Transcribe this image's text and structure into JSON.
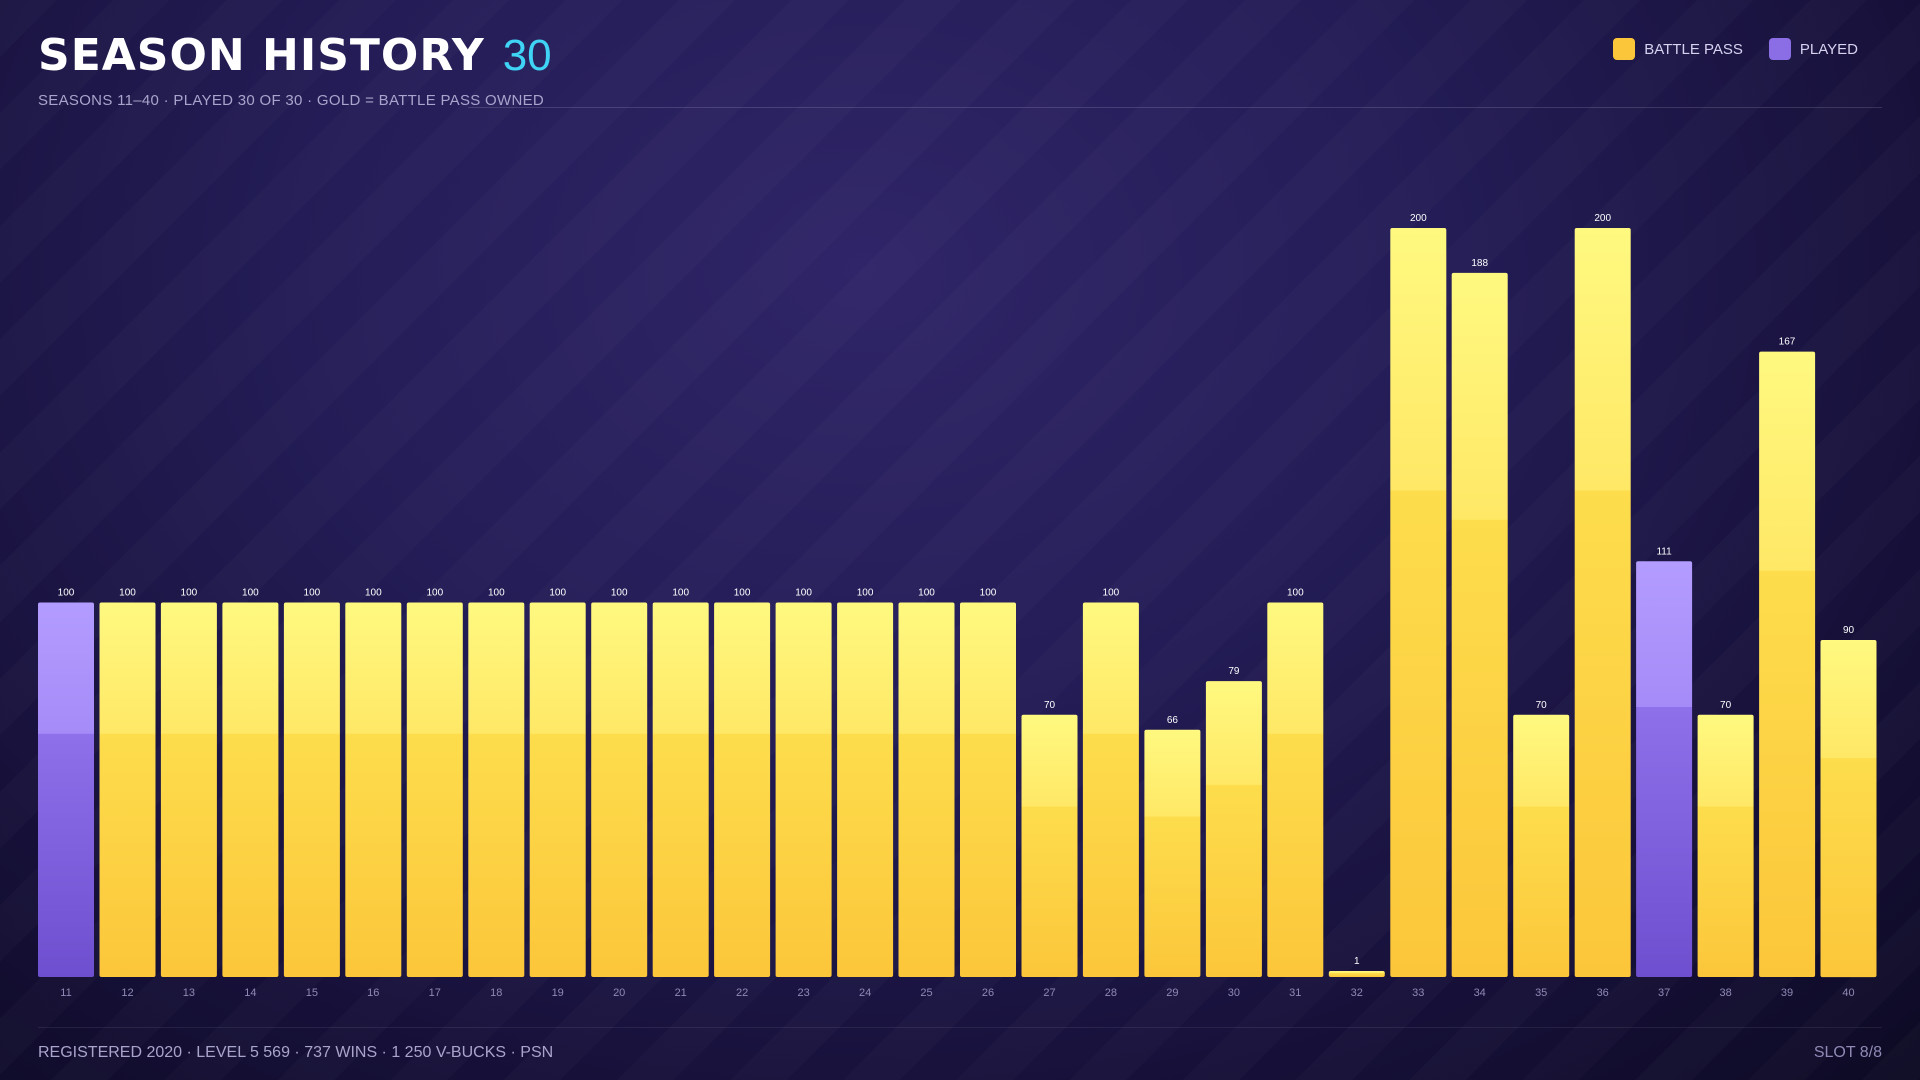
{
  "header": {
    "title": "SEASON HISTORY",
    "count": "30",
    "subtitle": "SEASONS 11–40 · PLAYED 30 OF 30 · GOLD = BATTLE PASS OWNED"
  },
  "legend": {
    "battle_pass_label": "BATTLE PASS",
    "played_label": "PLAYED"
  },
  "colors": {
    "battle_pass_top": "#fff980",
    "battle_pass_bottom": "#fcc63a",
    "played_top": "#b39cff",
    "played_bottom": "#6e4fcf",
    "accent": "#3fd3f5"
  },
  "chart_data": {
    "type": "bar",
    "title": "SEASON HISTORY",
    "categories": [
      "11",
      "12",
      "13",
      "14",
      "15",
      "16",
      "17",
      "18",
      "19",
      "20",
      "21",
      "22",
      "23",
      "24",
      "25",
      "26",
      "27",
      "28",
      "29",
      "30",
      "31",
      "32",
      "33",
      "34",
      "35",
      "36",
      "37",
      "38",
      "39",
      "40"
    ],
    "values": [
      100,
      100,
      100,
      100,
      100,
      100,
      100,
      100,
      100,
      100,
      100,
      100,
      100,
      100,
      100,
      100,
      70,
      100,
      66,
      79,
      100,
      1,
      200,
      188,
      70,
      200,
      111,
      70,
      167,
      90
    ],
    "battle_pass": [
      false,
      true,
      true,
      true,
      true,
      true,
      true,
      true,
      true,
      true,
      true,
      true,
      true,
      true,
      true,
      true,
      true,
      true,
      true,
      true,
      true,
      true,
      true,
      true,
      true,
      true,
      false,
      true,
      true,
      true
    ],
    "legend": [
      "BATTLE PASS",
      "PLAYED"
    ],
    "legend_position": "top-right",
    "ylim": [
      0,
      200
    ],
    "grid": false
  },
  "footer": {
    "left": "REGISTERED 2020 · LEVEL 5 569 · 737 WINS · 1 250 V-BUCKS · PSN",
    "right": "SLOT 8/8"
  }
}
